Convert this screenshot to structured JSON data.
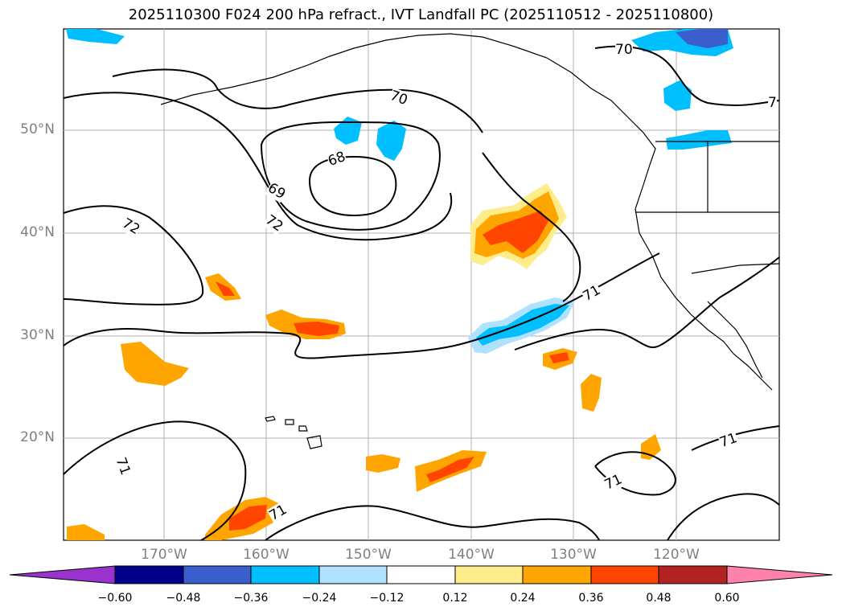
{
  "title": "2025110300 F024 200 hPa refract., IVT Landfall PC (2025110512 - 2025110800)",
  "map": {
    "lon_labels": [
      "170°W",
      "160°W",
      "150°W",
      "140°W",
      "130°W",
      "120°W"
    ],
    "lat_labels": [
      "50°N",
      "40°N",
      "30°N",
      "20°N"
    ],
    "contour_labels": [
      "70",
      "68",
      "69",
      "72",
      "72",
      "71",
      "71",
      "71",
      "71",
      "71",
      "70",
      "7"
    ]
  },
  "colorbar": {
    "ticks": [
      "−0.60",
      "−0.48",
      "−0.36",
      "−0.24",
      "−0.12",
      "0.12",
      "0.24",
      "0.36",
      "0.48",
      "0.60"
    ],
    "colors": [
      "#9a32cd",
      "#00008b",
      "#3a5fcd",
      "#00bfff",
      "#b0e2ff",
      "#ffffff",
      "#ffec8b",
      "#ffa500",
      "#ff4500",
      "#b22222",
      "#ff82ab"
    ]
  }
}
